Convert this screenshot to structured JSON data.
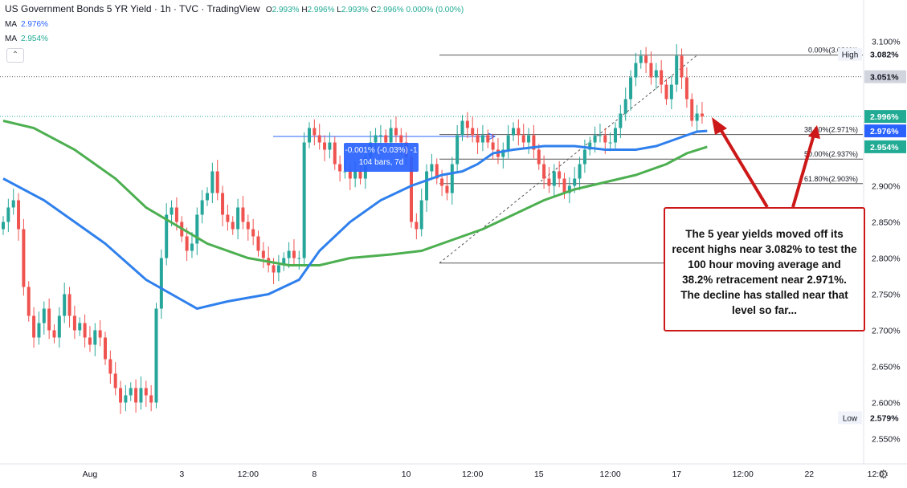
{
  "header": {
    "title": "US Government Bonds 5 YR Yield · 1h · TVC · TradingView",
    "ohlc": [
      {
        "key": "O",
        "value": "2.993%"
      },
      {
        "key": "H",
        "value": "2.996%"
      },
      {
        "key": "L",
        "value": "2.993%"
      },
      {
        "key": "C",
        "value": "2.996% 0.000% (0.00%)"
      }
    ]
  },
  "indicators": [
    {
      "label": "MA",
      "value": "2.976%",
      "color": "#2962ff"
    },
    {
      "label": "MA",
      "value": "2.954%",
      "color": "#22ab94"
    }
  ],
  "collapse_icon": "chevron-up-icon",
  "settings_icon": "gear-icon",
  "measure_box": {
    "line1": "-0.001% (-0.03%) -1",
    "line2": "104 bars, 7d"
  },
  "annotation": "The 5 year yields moved off its recent highs near 3.082% to test the 100 hour moving average and 38.2% retracement near 2.971%. The decline has stalled near that level so far...",
  "colors": {
    "up": "#26a69a",
    "down": "#ef5350",
    "ma100": "#2f80ed",
    "ma200": "#4caf50",
    "annotation": "#cc1818"
  },
  "chart_data": {
    "type": "candlestick",
    "y_range": [
      2.535,
      3.115
    ],
    "y_ticks": [
      "3.100%",
      "2.900%",
      "2.850%",
      "2.800%",
      "2.750%",
      "2.700%",
      "2.650%",
      "2.600%",
      "2.550%"
    ],
    "y_tick_values": [
      3.1,
      2.9,
      2.85,
      2.8,
      2.75,
      2.7,
      2.65,
      2.6,
      2.55
    ],
    "x_ticks": [
      {
        "label": "Aug",
        "bar": 17
      },
      {
        "label": "3",
        "bar": 35
      },
      {
        "label": "12:00",
        "bar": 48
      },
      {
        "label": "8",
        "bar": 61
      },
      {
        "label": "10",
        "bar": 79
      },
      {
        "label": "12:00",
        "bar": 92
      },
      {
        "label": "15",
        "bar": 105
      },
      {
        "label": "12:00",
        "bar": 119
      },
      {
        "label": "17",
        "bar": 132
      },
      {
        "label": "12:00",
        "bar": 145
      },
      {
        "label": "22",
        "bar": 158
      },
      {
        "label": "12:0",
        "bar": 171
      }
    ],
    "price_tags": [
      {
        "label": "High",
        "value": "3.082%",
        "y": 3.082,
        "style": "plain"
      },
      {
        "label": "",
        "value": "3.051%",
        "y": 3.051,
        "style": "dark"
      },
      {
        "label": "",
        "value": "2.996%",
        "y": 2.996,
        "style": "green"
      },
      {
        "label": "",
        "value": "2.976%",
        "y": 2.976,
        "style": "blue"
      },
      {
        "label": "",
        "value": "2.954%",
        "y": 2.954,
        "style": "green"
      },
      {
        "label": "Low",
        "value": "2.579%",
        "y": 2.579,
        "style": "plain"
      }
    ],
    "fib_levels": [
      {
        "label": "0.00%(3.081%)",
        "y": 3.081
      },
      {
        "label": "38.20%(2.971%)",
        "y": 2.971
      },
      {
        "label": "50.00%(2.937%)",
        "y": 2.937
      },
      {
        "label": "61.80%(2.903%)",
        "y": 2.903
      },
      {
        "label": "",
        "y": 2.793
      }
    ],
    "closes": [
      2.85,
      2.87,
      2.88,
      2.84,
      2.76,
      2.72,
      2.69,
      2.71,
      2.73,
      2.7,
      2.69,
      2.72,
      2.75,
      2.72,
      2.7,
      2.71,
      2.69,
      2.68,
      2.7,
      2.69,
      2.66,
      2.64,
      2.62,
      2.6,
      2.61,
      2.62,
      2.6,
      2.62,
      2.61,
      2.6,
      2.73,
      2.8,
      2.86,
      2.87,
      2.85,
      2.83,
      2.81,
      2.82,
      2.86,
      2.88,
      2.89,
      2.92,
      2.89,
      2.86,
      2.85,
      2.84,
      2.87,
      2.85,
      2.84,
      2.83,
      2.81,
      2.8,
      2.79,
      2.78,
      2.79,
      2.8,
      2.81,
      2.8,
      2.8,
      2.96,
      2.98,
      2.97,
      2.96,
      2.95,
      2.96,
      2.93,
      2.92,
      2.92,
      2.91,
      2.92,
      2.91,
      2.94,
      2.96,
      2.97,
      2.97,
      2.96,
      2.98,
      2.97,
      2.96,
      2.94,
      2.85,
      2.84,
      2.88,
      2.92,
      2.93,
      2.91,
      2.9,
      2.89,
      2.93,
      2.97,
      2.99,
      2.98,
      2.97,
      2.96,
      2.97,
      2.96,
      2.95,
      2.94,
      2.95,
      2.97,
      2.98,
      2.97,
      2.96,
      2.97,
      2.95,
      2.93,
      2.91,
      2.9,
      2.92,
      2.91,
      2.89,
      2.9,
      2.91,
      2.93,
      2.95,
      2.96,
      2.97,
      2.97,
      2.96,
      2.96,
      2.98,
      3.0,
      3.02,
      3.05,
      3.07,
      3.08,
      3.07,
      3.05,
      3.06,
      3.04,
      3.02,
      3.04,
      3.08,
      3.05,
      3.02,
      2.99,
      3.0,
      2.996
    ],
    "ma100": [
      [
        0,
        2.91
      ],
      [
        8,
        2.88
      ],
      [
        20,
        2.82
      ],
      [
        28,
        2.77
      ],
      [
        33,
        2.75
      ],
      [
        38,
        2.73
      ],
      [
        44,
        2.74
      ],
      [
        52,
        2.75
      ],
      [
        58,
        2.77
      ],
      [
        62,
        2.81
      ],
      [
        68,
        2.85
      ],
      [
        74,
        2.88
      ],
      [
        80,
        2.9
      ],
      [
        86,
        2.915
      ],
      [
        90,
        2.92
      ],
      [
        93,
        2.93
      ],
      [
        96,
        2.945
      ],
      [
        100,
        2.95
      ],
      [
        106,
        2.955
      ],
      [
        112,
        2.955
      ],
      [
        118,
        2.95
      ],
      [
        124,
        2.95
      ],
      [
        128,
        2.955
      ],
      [
        132,
        2.965
      ],
      [
        136,
        2.975
      ],
      [
        138,
        2.976
      ]
    ],
    "ma200": [
      [
        0,
        2.99
      ],
      [
        6,
        2.98
      ],
      [
        14,
        2.95
      ],
      [
        22,
        2.91
      ],
      [
        28,
        2.87
      ],
      [
        34,
        2.845
      ],
      [
        40,
        2.82
      ],
      [
        48,
        2.8
      ],
      [
        56,
        2.79
      ],
      [
        62,
        2.79
      ],
      [
        68,
        2.8
      ],
      [
        76,
        2.805
      ],
      [
        82,
        2.81
      ],
      [
        88,
        2.825
      ],
      [
        94,
        2.84
      ],
      [
        100,
        2.86
      ],
      [
        106,
        2.88
      ],
      [
        112,
        2.895
      ],
      [
        118,
        2.905
      ],
      [
        124,
        2.915
      ],
      [
        130,
        2.93
      ],
      [
        134,
        2.945
      ],
      [
        138,
        2.954
      ]
    ]
  }
}
